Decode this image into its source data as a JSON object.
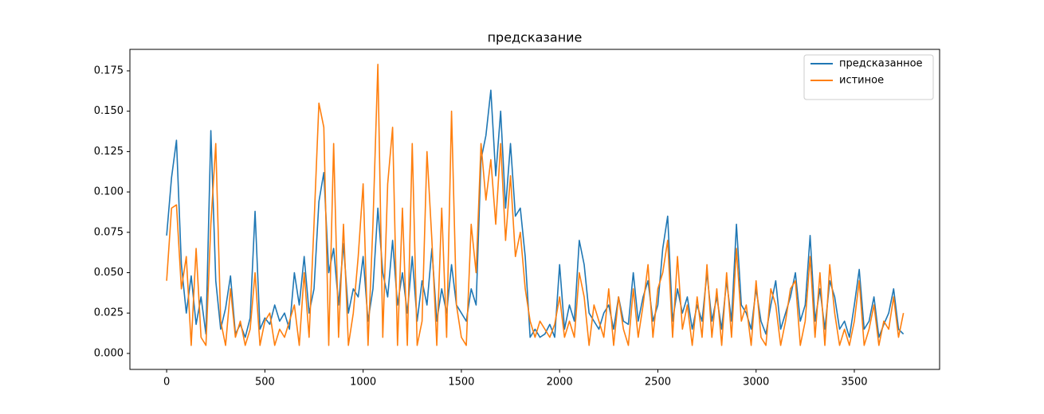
{
  "chart_data": {
    "type": "line",
    "title": "предсказание",
    "x": [
      0,
      25,
      50,
      75,
      100,
      125,
      150,
      175,
      200,
      225,
      250,
      275,
      300,
      325,
      350,
      375,
      400,
      425,
      450,
      475,
      500,
      525,
      550,
      575,
      600,
      625,
      650,
      675,
      700,
      725,
      750,
      775,
      800,
      825,
      850,
      875,
      900,
      925,
      950,
      975,
      1000,
      1025,
      1050,
      1075,
      1100,
      1125,
      1150,
      1175,
      1200,
      1225,
      1250,
      1275,
      1300,
      1325,
      1350,
      1375,
      1400,
      1425,
      1450,
      1475,
      1500,
      1525,
      1550,
      1575,
      1600,
      1625,
      1650,
      1675,
      1700,
      1725,
      1750,
      1775,
      1800,
      1825,
      1850,
      1875,
      1900,
      1925,
      1950,
      1975,
      2000,
      2025,
      2050,
      2075,
      2100,
      2125,
      2150,
      2175,
      2200,
      2225,
      2250,
      2275,
      2300,
      2325,
      2350,
      2375,
      2400,
      2425,
      2450,
      2475,
      2500,
      2525,
      2550,
      2575,
      2600,
      2625,
      2650,
      2675,
      2700,
      2725,
      2750,
      2775,
      2800,
      2825,
      2850,
      2875,
      2900,
      2925,
      2950,
      2975,
      3000,
      3025,
      3050,
      3075,
      3100,
      3125,
      3150,
      3175,
      3200,
      3225,
      3250,
      3275,
      3300,
      3325,
      3350,
      3375,
      3400,
      3425,
      3450,
      3475,
      3500,
      3525,
      3550,
      3575,
      3600,
      3625,
      3650,
      3675,
      3700,
      3725,
      3750
    ],
    "series": [
      {
        "name": "предсказанное",
        "color": "#1f77b4",
        "values": [
          0.073,
          0.109,
          0.132,
          0.055,
          0.025,
          0.048,
          0.018,
          0.035,
          0.012,
          0.138,
          0.045,
          0.015,
          0.028,
          0.048,
          0.012,
          0.018,
          0.01,
          0.022,
          0.088,
          0.015,
          0.022,
          0.018,
          0.03,
          0.02,
          0.025,
          0.015,
          0.05,
          0.03,
          0.06,
          0.025,
          0.04,
          0.094,
          0.112,
          0.05,
          0.065,
          0.03,
          0.068,
          0.025,
          0.04,
          0.035,
          0.06,
          0.02,
          0.04,
          0.09,
          0.05,
          0.035,
          0.07,
          0.03,
          0.05,
          0.025,
          0.06,
          0.02,
          0.045,
          0.03,
          0.065,
          0.02,
          0.04,
          0.025,
          0.055,
          0.03,
          0.025,
          0.02,
          0.04,
          0.03,
          0.12,
          0.135,
          0.163,
          0.11,
          0.15,
          0.09,
          0.13,
          0.085,
          0.09,
          0.06,
          0.01,
          0.015,
          0.01,
          0.012,
          0.018,
          0.01,
          0.055,
          0.015,
          0.03,
          0.02,
          0.07,
          0.055,
          0.025,
          0.02,
          0.015,
          0.025,
          0.03,
          0.015,
          0.035,
          0.02,
          0.018,
          0.05,
          0.02,
          0.035,
          0.045,
          0.02,
          0.03,
          0.065,
          0.085,
          0.02,
          0.04,
          0.025,
          0.035,
          0.015,
          0.03,
          0.02,
          0.05,
          0.02,
          0.035,
          0.015,
          0.045,
          0.02,
          0.08,
          0.03,
          0.025,
          0.015,
          0.04,
          0.02,
          0.012,
          0.03,
          0.045,
          0.015,
          0.025,
          0.035,
          0.05,
          0.02,
          0.03,
          0.073,
          0.02,
          0.04,
          0.015,
          0.045,
          0.035,
          0.015,
          0.02,
          0.01,
          0.03,
          0.052,
          0.015,
          0.02,
          0.035,
          0.01,
          0.018,
          0.025,
          0.04,
          0.015,
          0.012
        ]
      },
      {
        "name": "истиное",
        "color": "#ff7f0e",
        "values": [
          0.045,
          0.09,
          0.092,
          0.04,
          0.06,
          0.005,
          0.065,
          0.01,
          0.005,
          0.08,
          0.13,
          0.02,
          0.005,
          0.04,
          0.01,
          0.02,
          0.005,
          0.015,
          0.05,
          0.005,
          0.02,
          0.025,
          0.005,
          0.015,
          0.01,
          0.02,
          0.03,
          0.005,
          0.05,
          0.01,
          0.08,
          0.155,
          0.14,
          0.005,
          0.13,
          0.01,
          0.08,
          0.005,
          0.025,
          0.06,
          0.105,
          0.005,
          0.08,
          0.179,
          0.01,
          0.105,
          0.14,
          0.005,
          0.09,
          0.005,
          0.13,
          0.005,
          0.02,
          0.125,
          0.07,
          0.005,
          0.09,
          0.01,
          0.15,
          0.03,
          0.01,
          0.005,
          0.08,
          0.05,
          0.13,
          0.095,
          0.12,
          0.08,
          0.13,
          0.07,
          0.11,
          0.06,
          0.075,
          0.04,
          0.02,
          0.01,
          0.02,
          0.015,
          0.01,
          0.018,
          0.035,
          0.01,
          0.02,
          0.01,
          0.05,
          0.035,
          0.005,
          0.03,
          0.02,
          0.01,
          0.04,
          0.005,
          0.035,
          0.015,
          0.005,
          0.04,
          0.01,
          0.03,
          0.055,
          0.01,
          0.04,
          0.05,
          0.07,
          0.01,
          0.06,
          0.015,
          0.03,
          0.005,
          0.035,
          0.01,
          0.055,
          0.01,
          0.04,
          0.005,
          0.05,
          0.01,
          0.065,
          0.02,
          0.03,
          0.005,
          0.045,
          0.01,
          0.005,
          0.04,
          0.03,
          0.005,
          0.02,
          0.04,
          0.045,
          0.005,
          0.02,
          0.06,
          0.01,
          0.05,
          0.005,
          0.055,
          0.025,
          0.005,
          0.015,
          0.005,
          0.02,
          0.045,
          0.005,
          0.015,
          0.03,
          0.005,
          0.02,
          0.015,
          0.035,
          0.01,
          0.025
        ]
      }
    ],
    "xlim": [
      -187,
      3934
    ],
    "xticks": [
      0,
      500,
      1000,
      1500,
      2000,
      2500,
      3000,
      3500
    ],
    "ylim": [
      -0.0099,
      0.1883
    ],
    "yticks": [
      {
        "value": 0,
        "label": "0.000"
      },
      {
        "value": 0.025,
        "label": "0.025"
      },
      {
        "value": 0.05,
        "label": "0.050"
      },
      {
        "value": 0.075,
        "label": "0.075"
      },
      {
        "value": 0.1,
        "label": "0.100"
      },
      {
        "value": 0.125,
        "label": "0.125"
      },
      {
        "value": 0.15,
        "label": "0.150"
      },
      {
        "value": 0.175,
        "label": "0.175"
      }
    ],
    "legend": "upper right"
  }
}
